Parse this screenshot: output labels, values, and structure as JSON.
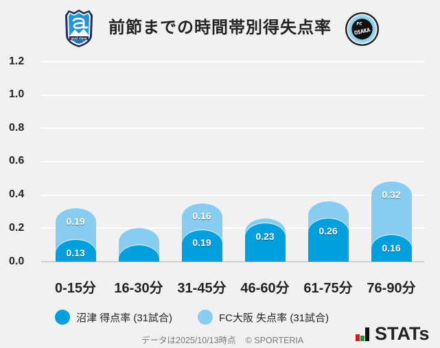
{
  "header": {
    "title": "前節までの時間帯別得失点率",
    "home_logo": {
      "name": "azul claro",
      "year": "1990",
      "emblem": "shield-logo"
    },
    "away_logo": {
      "top": "FC",
      "main": "OSAKA",
      "emblem": "circle-logo"
    }
  },
  "chart_data": {
    "type": "bar",
    "stacked": true,
    "title": "前節までの時間帯別得失点率",
    "xlabel": "",
    "ylabel": "",
    "categories": [
      "0-15分",
      "16-30分",
      "31-45分",
      "46-60分",
      "61-75分",
      "76-90分"
    ],
    "series": [
      {
        "key": "numazu-scoring",
        "name": "沼津 得点率 (31試合)",
        "color": "#00a0df",
        "values": [
          0.13,
          0.1,
          0.19,
          0.23,
          0.26,
          0.16
        ],
        "labels": [
          "0.13",
          "",
          "0.19",
          "0.23",
          "0.26",
          "0.16"
        ]
      },
      {
        "key": "fcosaka-conceded",
        "name": "FC大阪 失点率 (31試合)",
        "color": "#88cdf1",
        "values": [
          0.19,
          0.1,
          0.16,
          0.03,
          0.1,
          0.32
        ],
        "labels": [
          "0.19",
          "",
          "0.16",
          "",
          "",
          "0.32"
        ]
      }
    ],
    "yticks": [
      "1.2",
      "1.0",
      "0.8",
      "0.6",
      "0.4",
      "0.2",
      "0.0"
    ],
    "ylim": [
      0,
      1.2
    ],
    "grid": true,
    "legend_position": "bottom"
  },
  "footer": {
    "data_note": "データは2025/10/13時点",
    "copyright": "© SPORTERIA",
    "brand": "STATs",
    "brand_colors": [
      "#d7191c",
      "#1a9a3b",
      "#111111"
    ]
  }
}
